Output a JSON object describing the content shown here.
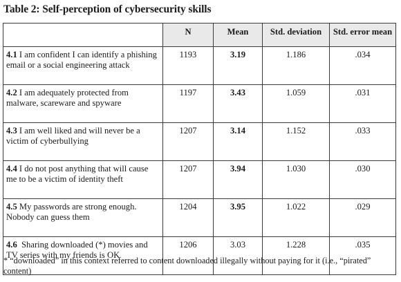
{
  "title": "Table 2: Self-perception of cybersecurity skills",
  "columns": [
    "",
    "N",
    "Mean",
    "Std. deviation",
    "Std. error mean"
  ],
  "rows": [
    {
      "code": "4.1",
      "text": " I am confident I can identify a phishing email or a social engineering attack",
      "n": "1193",
      "mean": "3.19",
      "mean_bold": true,
      "sd": "1.186",
      "se": ".034"
    },
    {
      "code": "4.2",
      "text": " I am adequately protected from malware, scareware and spyware",
      "n": "1197",
      "mean": "3.43",
      "mean_bold": true,
      "sd": "1.059",
      "se": ".031"
    },
    {
      "code": "4.3",
      "text": " I am well liked and will never be a victim of cyberbullying",
      "n": "1207",
      "mean": "3.14",
      "mean_bold": true,
      "sd": "1.152",
      "se": ".033"
    },
    {
      "code": "4.4",
      "text": " I do not post anything that will cause me to be a victim of identity theft",
      "n": "1207",
      "mean": "3.94",
      "mean_bold": true,
      "sd": "1.030",
      "se": ".030"
    },
    {
      "code": "4.5",
      "text": " My passwords are strong enough. Nobody can guess them",
      "n": "1204",
      "mean": "3.95",
      "mean_bold": true,
      "sd": "1.022",
      "se": ".029"
    },
    {
      "code": "4.6",
      "text": "  Sharing downloaded (*) movies and TV series with my friends is OK",
      "n": "1206",
      "mean": "3.03",
      "mean_bold": false,
      "sd": "1.228",
      "se": ".035"
    }
  ],
  "footnote": "* “downloaded” in this context referred to content downloaded illegally without paying for it (i.e., “pirated” content)"
}
